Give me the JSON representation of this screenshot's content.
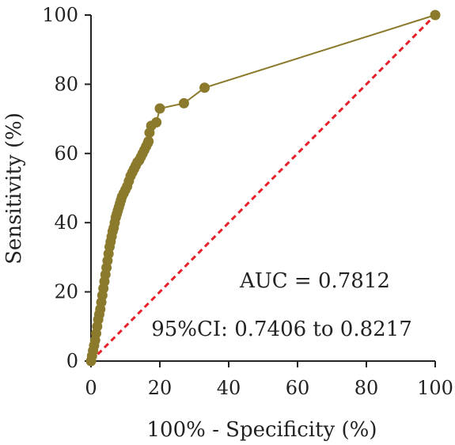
{
  "chart_data": {
    "type": "line",
    "title": "",
    "xlabel": "100% - Specificity (%)",
    "ylabel": "Sensitivity (%)",
    "xlim": [
      0,
      100
    ],
    "ylim": [
      0,
      100
    ],
    "xticks": [
      "0",
      "20",
      "40",
      "60",
      "80",
      "100"
    ],
    "yticks": [
      "0",
      "20",
      "40",
      "60",
      "80",
      "100"
    ],
    "grid": false,
    "legend": "none",
    "annotations": {
      "auc": "AUC = 0.7812",
      "ci": "95%CI: 0.7406 to 0.8217"
    },
    "colors": {
      "roc": "#8b7a2c",
      "reference": "#e8202a",
      "axis": "#222222"
    },
    "series": [
      {
        "x": [
          0,
          0.3,
          0.6,
          0.9,
          1.2,
          1.5,
          1.8,
          2.1,
          2.4,
          2.7,
          3.0,
          3.3,
          3.6,
          3.9,
          4.2,
          4.5,
          4.8,
          5.1,
          5.4,
          5.7,
          6.0,
          6.3,
          6.6,
          6.9,
          7.2,
          7.5,
          7.8,
          8.1,
          8.4,
          8.7,
          9.0,
          9.5,
          10.0,
          10.5,
          11.0,
          11.5,
          12.0,
          12.5,
          13.0,
          13.5,
          14.0,
          14.5,
          15.0,
          15.5,
          16.0,
          16.5,
          16.7,
          17.0,
          17.5,
          19.0,
          20.0,
          27.0,
          33.0,
          100
        ],
        "y": [
          0,
          1.5,
          3,
          4.5,
          6,
          8,
          10,
          12,
          13.5,
          15,
          17,
          19,
          21,
          23,
          25,
          27,
          29,
          31,
          33,
          34.5,
          36,
          37.5,
          38.5,
          40,
          41.5,
          42.5,
          43.5,
          44.5,
          45.5,
          46.5,
          47.5,
          48.5,
          49.5,
          50.5,
          52,
          53.5,
          54.5,
          55.5,
          56.5,
          57.5,
          58,
          59,
          60,
          61,
          62,
          63,
          63.5,
          66,
          68,
          69,
          73,
          74.5,
          79,
          100
        ]
      },
      {
        "x": [
          0,
          100
        ],
        "y": [
          0,
          100
        ]
      }
    ]
  }
}
